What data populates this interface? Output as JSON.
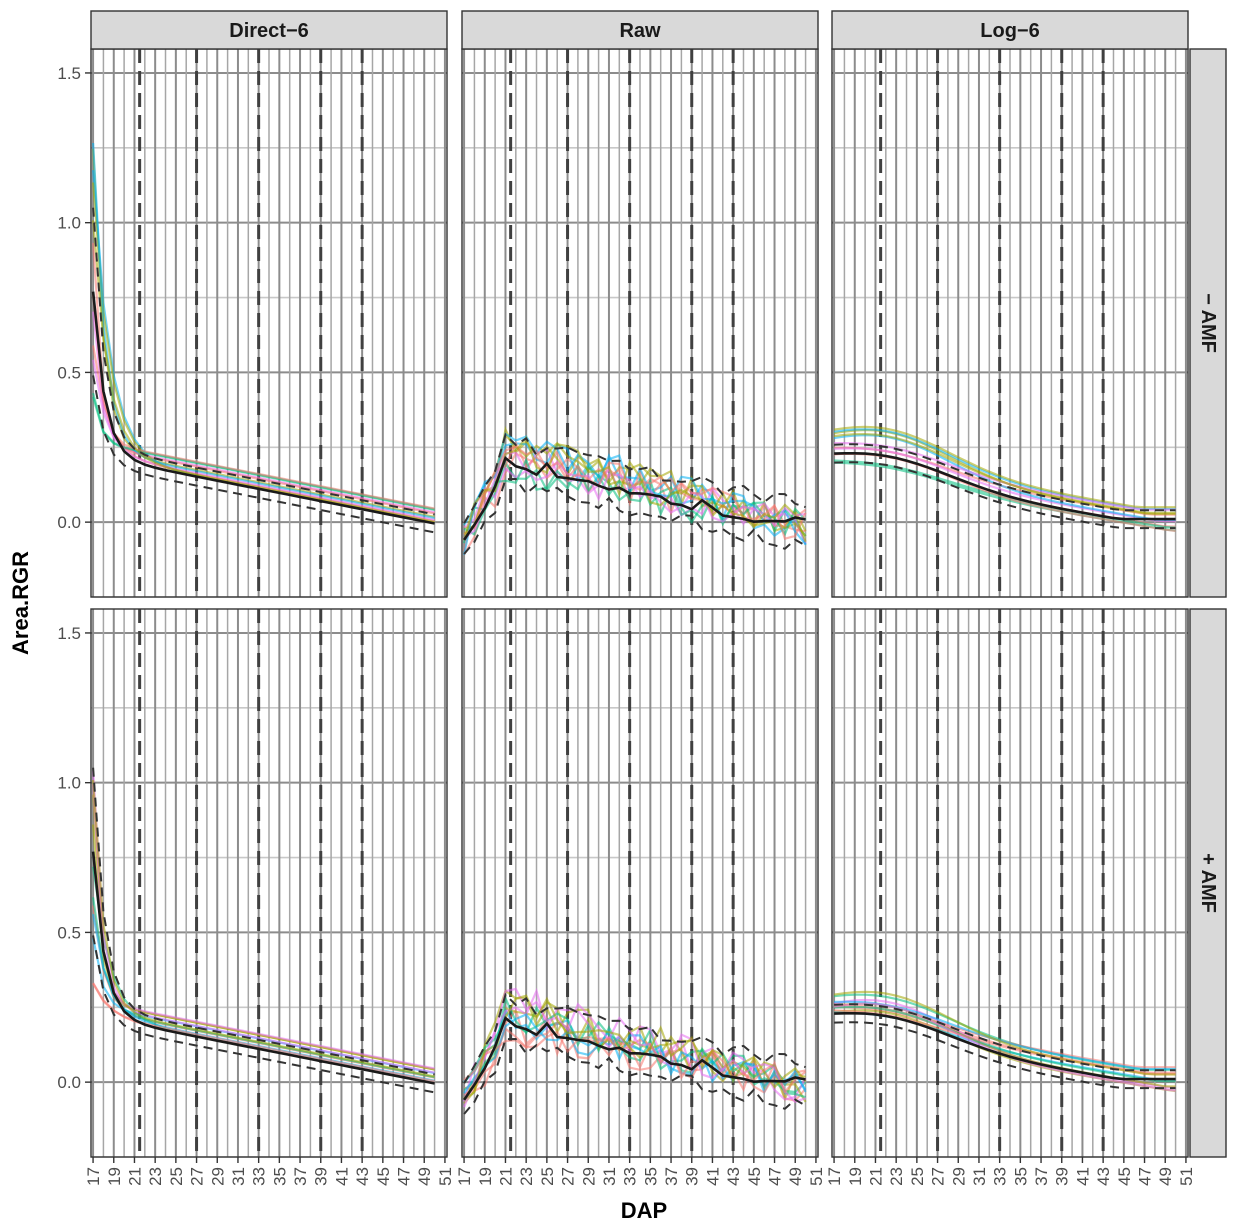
{
  "chart_data": {
    "type": "line",
    "facets": {
      "columns": [
        "Direct−6",
        "Raw",
        "Log−6"
      ],
      "rows": [
        "− AMF",
        "+ AMF"
      ]
    },
    "xlabel": "DAP",
    "ylabel": "Area.RGR",
    "x_ticks": [
      17,
      19,
      21,
      23,
      25,
      27,
      29,
      31,
      33,
      35,
      37,
      39,
      41,
      43,
      45,
      47,
      49,
      51
    ],
    "x_range": [
      16.8,
      51.2
    ],
    "y_range": [
      -0.25,
      1.58
    ],
    "y_ticks": [
      0.0,
      0.5,
      1.0,
      1.5
    ],
    "y_tick_labels": [
      "0.0",
      "0.5",
      "1.0",
      "1.5"
    ],
    "vertical_dashed_lines": [
      21.5,
      27,
      33,
      39,
      43
    ],
    "grid": true,
    "series_colors": [
      "#f8766d",
      "#a3a500",
      "#00bf7d",
      "#00b0f6",
      "#e76bf3",
      "#7f7f7f"
    ],
    "mean_color": "#1a1a1a",
    "envelope_color": "#333333",
    "background_color": "#ffffff",
    "strip_color": "#d9d9d9",
    "grid_color": "#8c8c8c"
  }
}
